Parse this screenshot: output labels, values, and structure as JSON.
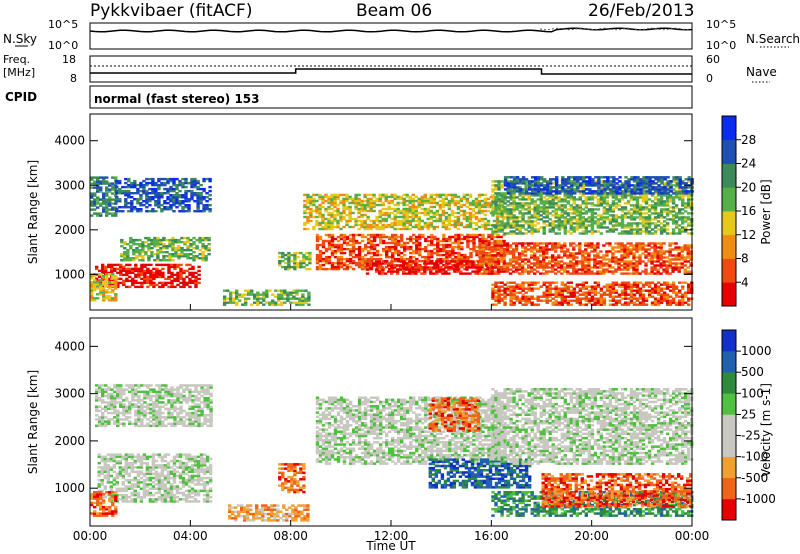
{
  "header": {
    "site": "Pykkvibaer (fitACF)",
    "beam": "Beam 06",
    "date": "26/Feb/2013"
  },
  "noise_panel": {
    "left_label": "N.Sky",
    "right_label": "N.Search",
    "left_ticks": [
      "10^5",
      "10^0"
    ],
    "right_ticks": [
      "10^5",
      "10^0"
    ]
  },
  "freq_panel": {
    "left_label": "Freq.",
    "left_unit": "[MHz]",
    "right_label": "Nave",
    "left_ticks": [
      "18",
      "8"
    ],
    "right_ticks": [
      "60",
      "0"
    ]
  },
  "cpid": {
    "label": "CPID",
    "text": "normal (fast stereo) 153"
  },
  "x_axis": {
    "label": "Time UT",
    "ticks": [
      "00:00",
      "04:00",
      "08:00",
      "12:00",
      "16:00",
      "20:00",
      "00:00"
    ]
  },
  "chart_data": [
    {
      "type": "heatmap",
      "name": "power",
      "ylabel": "Slant Range [km]",
      "yticks": [
        1000,
        2000,
        3000,
        4000
      ],
      "ylim": [
        200,
        4600
      ],
      "xlim_hours": [
        0,
        24
      ],
      "colorbar": {
        "label": "Power [dB]",
        "ticks": [
          "4",
          "8",
          "12",
          "16",
          "20",
          "24",
          "28"
        ],
        "colors": [
          "#0a2cf0",
          "#1f4fb4",
          "#3c8a5a",
          "#56b04a",
          "#e6c81c",
          "#f08c14",
          "#f04a10",
          "#e60000"
        ]
      },
      "bands": [
        {
          "t0": 0.0,
          "t1": 1.0,
          "r0": 2300,
          "r1": 3200,
          "level": 2
        },
        {
          "t0": 1.0,
          "t1": 4.8,
          "r0": 2400,
          "r1": 3150,
          "level": 1
        },
        {
          "t0": 1.2,
          "t1": 4.8,
          "r0": 1300,
          "r1": 1800,
          "level": 3
        },
        {
          "t0": 0.2,
          "t1": 4.3,
          "r0": 700,
          "r1": 1200,
          "level": 7
        },
        {
          "t0": 0.0,
          "t1": 1.0,
          "r0": 400,
          "r1": 1000,
          "level": 4
        },
        {
          "t0": 5.3,
          "t1": 8.7,
          "r0": 300,
          "r1": 650,
          "level": 3
        },
        {
          "t0": 7.5,
          "t1": 8.7,
          "r0": 1100,
          "r1": 1500,
          "level": 3
        },
        {
          "t0": 8.5,
          "t1": 16.5,
          "r0": 2000,
          "r1": 2800,
          "level": 4
        },
        {
          "t0": 9.0,
          "t1": 16.5,
          "r0": 1100,
          "r1": 1900,
          "level": 6
        },
        {
          "t0": 11.0,
          "t1": 16.0,
          "r0": 1000,
          "r1": 1300,
          "level": 7
        },
        {
          "t0": 15.5,
          "t1": 24.0,
          "r0": 1000,
          "r1": 1700,
          "level": 6
        },
        {
          "t0": 16.0,
          "t1": 24.0,
          "r0": 300,
          "r1": 800,
          "level": 6
        },
        {
          "t0": 16.0,
          "t1": 24.0,
          "r0": 1900,
          "r1": 3100,
          "level": 3
        },
        {
          "t0": 16.5,
          "t1": 24.0,
          "r0": 2800,
          "r1": 3200,
          "level": 1
        }
      ]
    },
    {
      "type": "heatmap",
      "name": "velocity",
      "ylabel": "Slant Range [km]",
      "yticks": [
        1000,
        2000,
        3000,
        4000
      ],
      "ylim": [
        200,
        4600
      ],
      "xlim_hours": [
        0,
        24
      ],
      "colorbar": {
        "label": "Velocity [m s-1]",
        "ticks": [
          "1000",
          "500",
          "100",
          "25",
          "-25",
          "-100",
          "-500",
          "-1000"
        ],
        "colors": [
          "#1030c8",
          "#2060b0",
          "#2e8a3c",
          "#50c040",
          "#c8c8c0",
          "#c8c8c0",
          "#f0a030",
          "#f06418",
          "#e60000"
        ]
      },
      "bands": [
        {
          "t0": 0.2,
          "t1": 4.8,
          "r0": 2300,
          "r1": 3200,
          "level": 4
        },
        {
          "t0": 0.3,
          "t1": 4.8,
          "r0": 700,
          "r1": 1700,
          "level": 4
        },
        {
          "t0": 0.0,
          "t1": 1.0,
          "r0": 400,
          "r1": 900,
          "level": 7
        },
        {
          "t0": 5.5,
          "t1": 8.7,
          "r0": 300,
          "r1": 650,
          "level": 6
        },
        {
          "t0": 7.5,
          "t1": 8.5,
          "r0": 900,
          "r1": 1500,
          "level": 7
        },
        {
          "t0": 9.0,
          "t1": 16.5,
          "r0": 1500,
          "r1": 2900,
          "level": 4
        },
        {
          "t0": 13.5,
          "t1": 15.5,
          "r0": 2200,
          "r1": 2900,
          "level": 7
        },
        {
          "t0": 13.5,
          "t1": 17.5,
          "r0": 1000,
          "r1": 1600,
          "level": 1
        },
        {
          "t0": 16.0,
          "t1": 24.0,
          "r0": 400,
          "r1": 900,
          "level": 2
        },
        {
          "t0": 16.0,
          "t1": 24.0,
          "r0": 1500,
          "r1": 3100,
          "level": 4
        },
        {
          "t0": 18.0,
          "t1": 24.0,
          "r0": 600,
          "r1": 1300,
          "level": 7
        }
      ]
    }
  ]
}
